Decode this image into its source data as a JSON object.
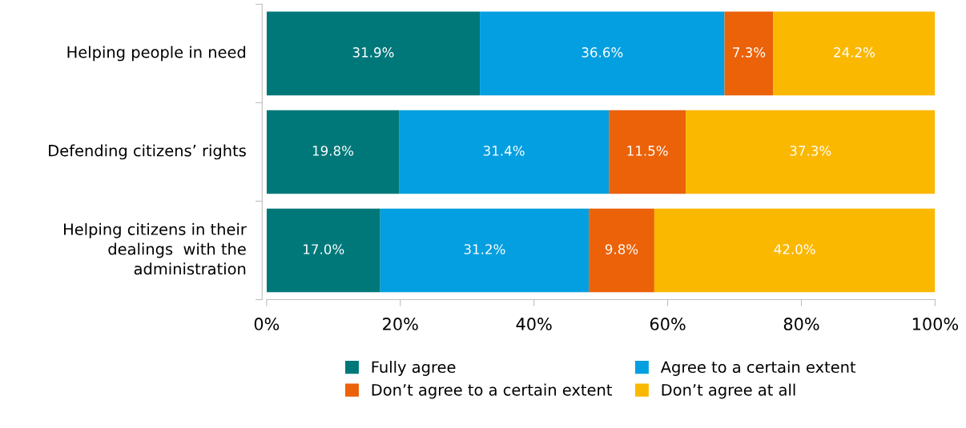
{
  "chart_data": {
    "type": "bar",
    "orientation": "horizontal",
    "stacked": true,
    "categories": [
      "Helping people in need",
      "Defending citizens’ rights",
      "Helping citizens in their\ndealings  with the\nadministration"
    ],
    "series": [
      {
        "name": "Fully agree",
        "color": "#00787a",
        "values": [
          31.9,
          19.8,
          17.0
        ],
        "value_labels": [
          "31.9%",
          "19.8%",
          "17.0%"
        ]
      },
      {
        "name": "Agree to a certain extent",
        "color": "#039fe0",
        "values": [
          36.6,
          31.4,
          31.2
        ],
        "value_labels": [
          "36.6%",
          "31.4%",
          "31.2%"
        ]
      },
      {
        "name": "Don’t agree to a certain extent",
        "color": "#eb6209",
        "values": [
          7.3,
          11.5,
          9.8
        ],
        "value_labels": [
          "7.3%",
          "11.5%",
          "9.8%"
        ]
      },
      {
        "name": "Don’t agree at all",
        "color": "#fbb800",
        "values": [
          24.2,
          37.3,
          42.0
        ],
        "value_labels": [
          "24.2%",
          "37.3%",
          "42.0%"
        ]
      }
    ],
    "xlim": [
      0,
      100
    ],
    "xticks": [
      {
        "value": 0,
        "label": "0%"
      },
      {
        "value": 20,
        "label": "20%"
      },
      {
        "value": 40,
        "label": "40%"
      },
      {
        "value": 60,
        "label": "60%"
      },
      {
        "value": 80,
        "label": "80%"
      },
      {
        "value": 100,
        "label": "100%"
      }
    ],
    "grid": false,
    "legend": "bottom"
  }
}
